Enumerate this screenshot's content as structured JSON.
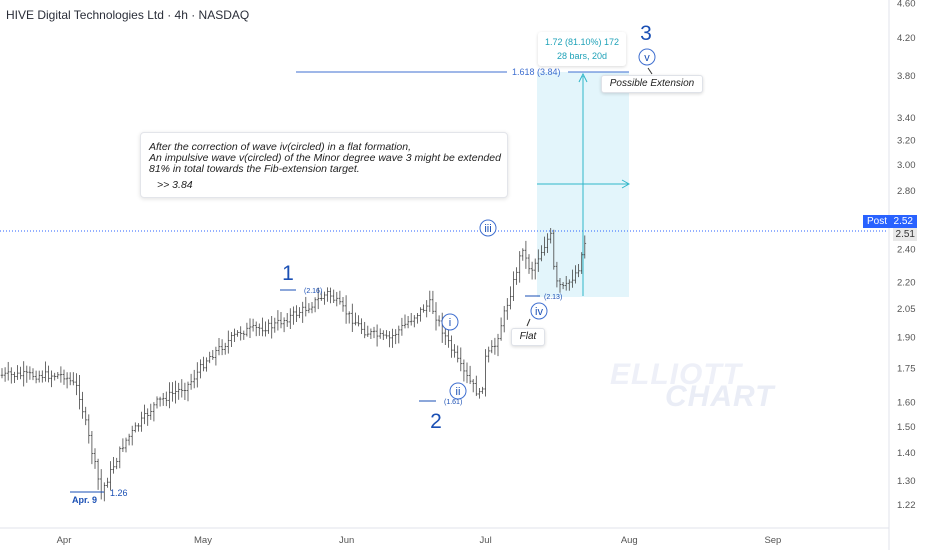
{
  "header": {
    "title": "HIVE Digital Technologies Ltd · 4h · NASDAQ"
  },
  "annotation": {
    "line1": "After the correction of wave iv(circled) in a flat formation,",
    "line2": "An impulsive wave v(circled) of the Minor degree wave 3 might be extended",
    "line3": "81% in total towards the Fib-extension target.",
    "result": ">> 3.84"
  },
  "measure": {
    "line1": "1.72 (81.10%) 172",
    "line2": "28 bars, 20d"
  },
  "tags": {
    "extension": "Possible Extension",
    "flat": "Flat"
  },
  "price_tag": {
    "label": "Post",
    "value": "2.52",
    "last": "2.51"
  },
  "watermark": {
    "line1": "ELLIOTT",
    "line2": "CHART"
  },
  "colors": {
    "wave": "#1a4fb4",
    "accent": "#2962ff",
    "teal": "#1fa2b8",
    "zone": "#e3f5fb"
  },
  "chart_data": {
    "type": "bar",
    "subtype": "ohlc",
    "y_axis_ticks": [
      "4.60",
      "4.20",
      "3.80",
      "3.40",
      "3.20",
      "3.00",
      "2.80",
      "2.40",
      "2.20",
      "2.05",
      "1.90",
      "1.75",
      "1.60",
      "1.50",
      "1.40",
      "1.30",
      "1.22"
    ],
    "x_axis_ticks": [
      "Apr",
      "May",
      "Jun",
      "Jul",
      "Aug",
      "Sep"
    ],
    "log_scale": true,
    "grid": false,
    "wave_labels": [
      {
        "label": "1",
        "price": 2.16,
        "level": "(2.16)"
      },
      {
        "label": "2",
        "price": 1.61,
        "level": "(1.61)"
      },
      {
        "label": "3",
        "price": 4.3,
        "level": ""
      },
      {
        "label": "i",
        "price": 2.0,
        "level": ""
      },
      {
        "label": "ii",
        "price": 1.61,
        "level": ""
      },
      {
        "label": "iii",
        "price": 2.56,
        "level": ""
      },
      {
        "label": "iv",
        "price": 2.13,
        "level": "(2.13)"
      },
      {
        "label": "v",
        "price": 4.1,
        "level": ""
      }
    ],
    "low_label": {
      "date": "Apr. 9",
      "price": "1.26"
    },
    "fib_target": {
      "label": "1.618 (3.84)",
      "price": 3.84
    },
    "last_price": 2.52,
    "price_path": [
      {
        "date": "Apr 1",
        "price": 1.72
      },
      {
        "date": "Apr 4",
        "price": 1.66
      },
      {
        "date": "Apr 9",
        "price": 1.26
      },
      {
        "date": "Apr 14",
        "price": 1.44
      },
      {
        "date": "Apr 21",
        "price": 1.6
      },
      {
        "date": "Apr 28",
        "price": 1.68
      },
      {
        "date": "May 2",
        "price": 1.8
      },
      {
        "date": "May 9",
        "price": 1.93
      },
      {
        "date": "May 16",
        "price": 1.96
      },
      {
        "date": "May 23",
        "price": 2.05
      },
      {
        "date": "May 28",
        "price": 2.14
      },
      {
        "date": "Jun 2",
        "price": 2.0
      },
      {
        "date": "Jun 5",
        "price": 1.93
      },
      {
        "date": "Jun 10",
        "price": 1.89
      },
      {
        "date": "Jun 16",
        "price": 2.02
      },
      {
        "date": "Jun 19",
        "price": 2.08
      },
      {
        "date": "Jun 23",
        "price": 1.87
      },
      {
        "date": "Jun 26",
        "price": 1.74
      },
      {
        "date": "Jun 30",
        "price": 1.62
      },
      {
        "date": "Jul 1",
        "price": 1.8
      },
      {
        "date": "Jul 3",
        "price": 1.86
      },
      {
        "date": "Jul 7",
        "price": 2.2
      },
      {
        "date": "Jul 9",
        "price": 2.42
      },
      {
        "date": "Jul 10",
        "price": 2.3
      },
      {
        "date": "Jul 11",
        "price": 2.28
      },
      {
        "date": "Jul 15",
        "price": 2.5
      },
      {
        "date": "Jul 16",
        "price": 2.2
      },
      {
        "date": "Jul 18",
        "price": 2.16
      },
      {
        "date": "Jul 21",
        "price": 2.28
      },
      {
        "date": "Jul 23",
        "price": 2.52
      }
    ]
  }
}
